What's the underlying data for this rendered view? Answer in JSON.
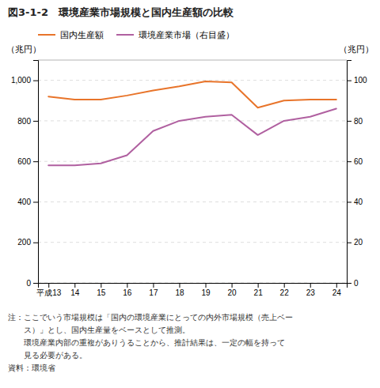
{
  "chart_data": {
    "type": "line",
    "title": "図3-1-2　環境産業市場規模と国内生産額の比較",
    "ylabel": "（兆円）",
    "y2label": "（兆円）",
    "categories": [
      "平成13",
      "14",
      "15",
      "16",
      "17",
      "18",
      "19",
      "20",
      "21",
      "22",
      "23",
      "24"
    ],
    "series": [
      {
        "name": "国内生産額",
        "color": "#e8742a",
        "values": [
          920,
          905,
          905,
          925,
          950,
          970,
          995,
          990,
          865,
          900,
          905,
          905
        ]
      },
      {
        "name": "環境産業市場（右目盛）",
        "color": "#b060a0",
        "axis": "y2",
        "values": [
          58,
          58,
          59,
          63,
          75,
          80,
          82,
          83,
          73,
          80,
          82,
          86
        ]
      }
    ],
    "ylim": [
      0,
      1100
    ],
    "yticks": [
      0,
      200,
      400,
      600,
      800,
      {
        "value": 1000,
        "label": "1,000"
      }
    ],
    "y2lim": [
      0,
      110
    ],
    "y2ticks": [
      0,
      20,
      40,
      60,
      80,
      100
    ],
    "grid": true,
    "legend": "top-left",
    "annotations": [
      "注：ここでいう市場規模は「国内の環境産業にとっての内外市場規模（売上ベー",
      "　　ス）」とし、国内生産量をベースとして推測。",
      "　　環境産業内部の重複がありうることから、推計結果は、一定の幅を持って",
      "　　見る必要がある。",
      "資料：環境省"
    ]
  }
}
